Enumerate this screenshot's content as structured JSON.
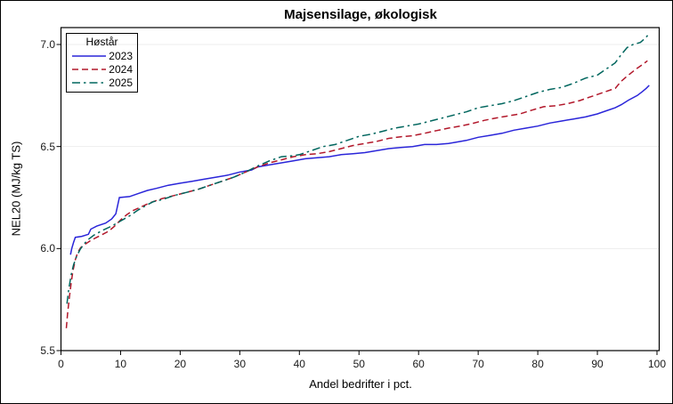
{
  "figure": {
    "title": "Majsensilage, økologisk"
  },
  "legend": {
    "title": "Høstår",
    "entries": [
      {
        "label": "2023",
        "color": "#2A25D9",
        "linestyle": "solid"
      },
      {
        "label": "2024",
        "color": "#B2182B",
        "linestyle": "dashed"
      },
      {
        "label": "2025",
        "color": "#01665E",
        "linestyle": "dashdot"
      }
    ]
  },
  "colors": {
    "series_2023": "#2A25D9",
    "series_2024": "#B2182B",
    "series_2025": "#01665E",
    "gridline": "#ededed",
    "frame": "#000000"
  },
  "chart_data": {
    "type": "line",
    "title": "Majsensilage, økologisk",
    "xlabel": "Andel bedrifter i pct.",
    "ylabel": "NEL20 (MJ/kg TS)",
    "xlim": [
      0,
      100
    ],
    "ylim": [
      5.5,
      7.0
    ],
    "xticks": [
      0,
      10,
      20,
      30,
      40,
      50,
      60,
      70,
      80,
      90,
      100
    ],
    "xticklabels": [
      "0",
      "10",
      "20",
      "30",
      "40",
      "50",
      "60",
      "70",
      "80",
      "90",
      "100"
    ],
    "yticks": [
      5.5,
      6.0,
      6.5,
      7.0
    ],
    "yticklabels": [
      "5.5",
      "6.0",
      "6.5",
      "7.0"
    ],
    "grid": "horizontal",
    "legend_title": "Høstår",
    "legend_position": "top-left-inside",
    "series": [
      {
        "name": "2023",
        "color": "#2A25D9",
        "linestyle": "solid",
        "points": [
          [
            1.6,
            5.97
          ],
          [
            1.8,
            6.0
          ],
          [
            2.1,
            6.03
          ],
          [
            2.4,
            6.055
          ],
          [
            3.5,
            6.06
          ],
          [
            4.6,
            6.07
          ],
          [
            5.0,
            6.095
          ],
          [
            6,
            6.11
          ],
          [
            7.5,
            6.125
          ],
          [
            8.5,
            6.145
          ],
          [
            9.2,
            6.17
          ],
          [
            9.8,
            6.25
          ],
          [
            11.5,
            6.255
          ],
          [
            13,
            6.27
          ],
          [
            14.5,
            6.285
          ],
          [
            16,
            6.295
          ],
          [
            18,
            6.31
          ],
          [
            20,
            6.32
          ],
          [
            22,
            6.33
          ],
          [
            24,
            6.34
          ],
          [
            26,
            6.35
          ],
          [
            28,
            6.36
          ],
          [
            30,
            6.375
          ],
          [
            32,
            6.385
          ],
          [
            33,
            6.4
          ],
          [
            35,
            6.41
          ],
          [
            37,
            6.42
          ],
          [
            39,
            6.43
          ],
          [
            41,
            6.44
          ],
          [
            43,
            6.445
          ],
          [
            45,
            6.45
          ],
          [
            47,
            6.46
          ],
          [
            49,
            6.465
          ],
          [
            51,
            6.47
          ],
          [
            53,
            6.48
          ],
          [
            55,
            6.49
          ],
          [
            57,
            6.495
          ],
          [
            59,
            6.5
          ],
          [
            61,
            6.51
          ],
          [
            63,
            6.51
          ],
          [
            65,
            6.515
          ],
          [
            66,
            6.52
          ],
          [
            68,
            6.53
          ],
          [
            70,
            6.545
          ],
          [
            72,
            6.555
          ],
          [
            74,
            6.565
          ],
          [
            76,
            6.58
          ],
          [
            78,
            6.59
          ],
          [
            80,
            6.6
          ],
          [
            82,
            6.615
          ],
          [
            84,
            6.625
          ],
          [
            86,
            6.635
          ],
          [
            88,
            6.645
          ],
          [
            90,
            6.66
          ],
          [
            91.5,
            6.675
          ],
          [
            93,
            6.69
          ],
          [
            94,
            6.705
          ],
          [
            95.2,
            6.727
          ],
          [
            96.7,
            6.75
          ],
          [
            97.6,
            6.77
          ],
          [
            98.2,
            6.785
          ],
          [
            98.7,
            6.8
          ]
        ]
      },
      {
        "name": "2024",
        "color": "#B2182B",
        "linestyle": "dashed",
        "points": [
          [
            0.9,
            5.61
          ],
          [
            1.1,
            5.68
          ],
          [
            1.4,
            5.76
          ],
          [
            1.7,
            5.83
          ],
          [
            2.0,
            5.89
          ],
          [
            2.4,
            5.945
          ],
          [
            2.8,
            5.98
          ],
          [
            3.3,
            6.005
          ],
          [
            4,
            6.02
          ],
          [
            5,
            6.04
          ],
          [
            6,
            6.055
          ],
          [
            7,
            6.07
          ],
          [
            8,
            6.085
          ],
          [
            9,
            6.11
          ],
          [
            10,
            6.14
          ],
          [
            11,
            6.165
          ],
          [
            12,
            6.185
          ],
          [
            13.5,
            6.205
          ],
          [
            15,
            6.225
          ],
          [
            17,
            6.245
          ],
          [
            19,
            6.26
          ],
          [
            21,
            6.275
          ],
          [
            23,
            6.29
          ],
          [
            25,
            6.31
          ],
          [
            27,
            6.33
          ],
          [
            29,
            6.35
          ],
          [
            31,
            6.375
          ],
          [
            33,
            6.4
          ],
          [
            35,
            6.42
          ],
          [
            37,
            6.435
          ],
          [
            39,
            6.45
          ],
          [
            41,
            6.46
          ],
          [
            43,
            6.465
          ],
          [
            45,
            6.475
          ],
          [
            47,
            6.49
          ],
          [
            49,
            6.505
          ],
          [
            51,
            6.515
          ],
          [
            53,
            6.525
          ],
          [
            55,
            6.54
          ],
          [
            57,
            6.548
          ],
          [
            59,
            6.553
          ],
          [
            61,
            6.565
          ],
          [
            63,
            6.578
          ],
          [
            65,
            6.59
          ],
          [
            67,
            6.6
          ],
          [
            69,
            6.613
          ],
          [
            71,
            6.628
          ],
          [
            73,
            6.64
          ],
          [
            75,
            6.65
          ],
          [
            77,
            6.66
          ],
          [
            79,
            6.678
          ],
          [
            81,
            6.695
          ],
          [
            83,
            6.7
          ],
          [
            85,
            6.71
          ],
          [
            87,
            6.725
          ],
          [
            88.5,
            6.74
          ],
          [
            90,
            6.755
          ],
          [
            91.5,
            6.77
          ],
          [
            93,
            6.785
          ],
          [
            94,
            6.82
          ],
          [
            95.2,
            6.85
          ],
          [
            96.5,
            6.88
          ],
          [
            97.5,
            6.9
          ],
          [
            98.4,
            6.92
          ]
        ]
      },
      {
        "name": "2025",
        "color": "#01665E",
        "linestyle": "dashdot",
        "points": [
          [
            1.0,
            5.73
          ],
          [
            1.3,
            5.8
          ],
          [
            1.7,
            5.87
          ],
          [
            2.1,
            5.92
          ],
          [
            2.6,
            5.96
          ],
          [
            3.2,
            5.995
          ],
          [
            3.8,
            6.02
          ],
          [
            4.6,
            6.045
          ],
          [
            5.5,
            6.065
          ],
          [
            7,
            6.09
          ],
          [
            8.5,
            6.11
          ],
          [
            10,
            6.135
          ],
          [
            11.5,
            6.16
          ],
          [
            13,
            6.19
          ],
          [
            14.5,
            6.215
          ],
          [
            15.5,
            6.23
          ],
          [
            17,
            6.24
          ],
          [
            19,
            6.26
          ],
          [
            21,
            6.275
          ],
          [
            23,
            6.29
          ],
          [
            25,
            6.31
          ],
          [
            27,
            6.33
          ],
          [
            29,
            6.35
          ],
          [
            31,
            6.375
          ],
          [
            33,
            6.405
          ],
          [
            35,
            6.43
          ],
          [
            37,
            6.45
          ],
          [
            39,
            6.455
          ],
          [
            40,
            6.46
          ],
          [
            42,
            6.48
          ],
          [
            44,
            6.5
          ],
          [
            46,
            6.51
          ],
          [
            48,
            6.53
          ],
          [
            50,
            6.55
          ],
          [
            52,
            6.56
          ],
          [
            54,
            6.575
          ],
          [
            56,
            6.59
          ],
          [
            58,
            6.6
          ],
          [
            60,
            6.61
          ],
          [
            62,
            6.625
          ],
          [
            64,
            6.64
          ],
          [
            66,
            6.655
          ],
          [
            68,
            6.67
          ],
          [
            70,
            6.69
          ],
          [
            72,
            6.7
          ],
          [
            74,
            6.71
          ],
          [
            76,
            6.725
          ],
          [
            78,
            6.745
          ],
          [
            80,
            6.765
          ],
          [
            82,
            6.78
          ],
          [
            84,
            6.79
          ],
          [
            86,
            6.81
          ],
          [
            88,
            6.835
          ],
          [
            90,
            6.85
          ],
          [
            91.5,
            6.88
          ],
          [
            93,
            6.91
          ],
          [
            94,
            6.95
          ],
          [
            95,
            6.985
          ],
          [
            96,
            7.0
          ],
          [
            97.2,
            7.01
          ],
          [
            98,
            7.03
          ],
          [
            98.6,
            7.05
          ]
        ]
      }
    ]
  }
}
